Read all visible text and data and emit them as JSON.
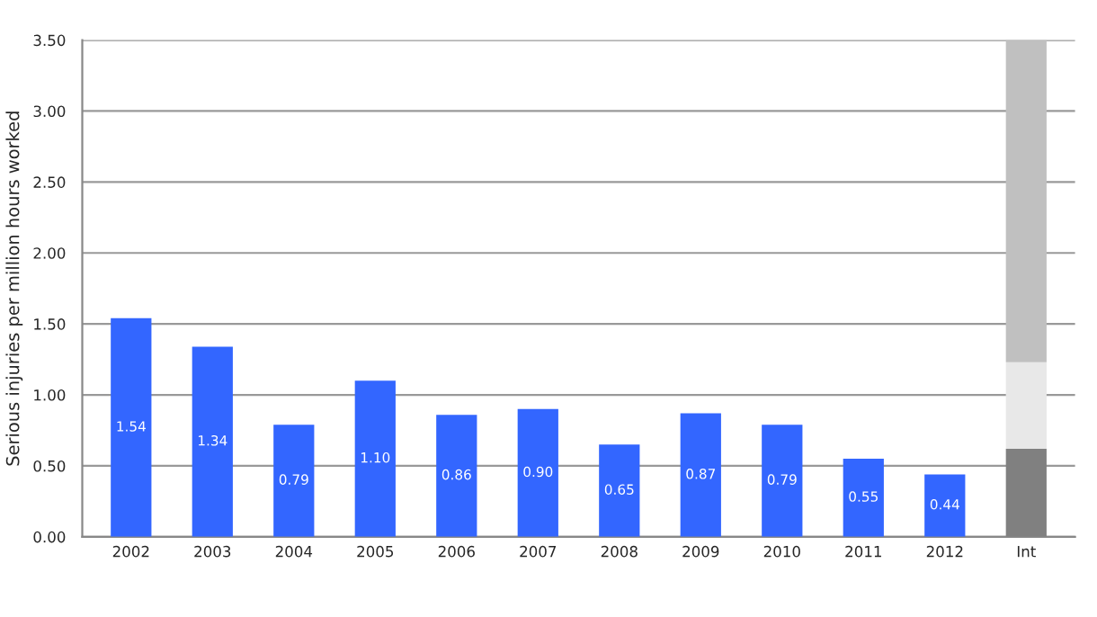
{
  "chart_data": {
    "type": "bar",
    "ylabel": "Serious injuries per million hours worked",
    "categories": [
      "2002",
      "2003",
      "2004",
      "2005",
      "2006",
      "2007",
      "2008",
      "2009",
      "2010",
      "2011",
      "2012",
      "Int"
    ],
    "stacked": true,
    "series": [
      {
        "color": "#3366ff",
        "values": [
          1.54,
          1.34,
          0.79,
          1.1,
          0.86,
          0.9,
          0.65,
          0.87,
          0.79,
          0.55,
          0.44,
          null
        ],
        "value_labels": [
          "1.54",
          "1.34",
          "0.79",
          "1.10",
          "0.86",
          "0.90",
          "0.65",
          "0.87",
          "0.79",
          "0.55",
          "0.44",
          null
        ]
      },
      {
        "color": "#808080",
        "values": [
          null,
          null,
          null,
          null,
          null,
          null,
          null,
          null,
          null,
          null,
          null,
          0.62
        ]
      },
      {
        "color": "#e8e8e8",
        "values": [
          null,
          null,
          null,
          null,
          null,
          null,
          null,
          null,
          null,
          null,
          null,
          0.61
        ]
      },
      {
        "color": "#c0c0c0",
        "values": [
          null,
          null,
          null,
          null,
          null,
          null,
          null,
          null,
          null,
          null,
          null,
          2.27
        ]
      }
    ],
    "ylim": [
      0,
      3.5
    ],
    "yticks": [
      {
        "value": 0,
        "label": "0.00"
      },
      {
        "value": 0.5,
        "label": "0.50"
      },
      {
        "value": 1,
        "label": "1.00"
      },
      {
        "value": 1.5,
        "label": "1.50"
      },
      {
        "value": 2,
        "label": "2.00"
      },
      {
        "value": 2.5,
        "label": "2.50"
      },
      {
        "value": 3,
        "label": "3.00"
      },
      {
        "value": 3.5,
        "label": "3.50"
      }
    ],
    "grid": "y"
  }
}
